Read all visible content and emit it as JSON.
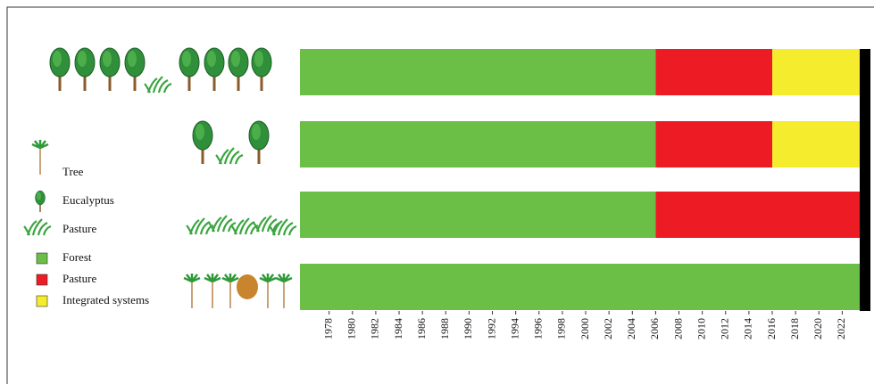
{
  "chart_data": {
    "type": "stacked-timeline",
    "categories": [
      null,
      null,
      null,
      null
    ],
    "xlim": [
      1975.5,
      2023.5
    ],
    "xticks": [
      1978,
      1980,
      1982,
      1984,
      1986,
      1988,
      1990,
      1992,
      1994,
      1996,
      1998,
      2000,
      2002,
      2004,
      2006,
      2008,
      2010,
      2012,
      2014,
      2016,
      2018,
      2020,
      2022
    ],
    "series": [
      {
        "name": "Forest",
        "color": "#6cbf46",
        "values": [
          30.5,
          30.5,
          30.5,
          48
        ]
      },
      {
        "name": "Pasture",
        "color": "#ed1c24",
        "values": [
          10,
          10,
          17.5,
          0
        ]
      },
      {
        "name": "Integrated systems",
        "color": "#f4ec2c",
        "values": [
          7.5,
          7.5,
          0,
          0
        ]
      }
    ],
    "icon_legend": [
      "Tree",
      "Eucalyptus",
      "Pasture"
    ]
  }
}
